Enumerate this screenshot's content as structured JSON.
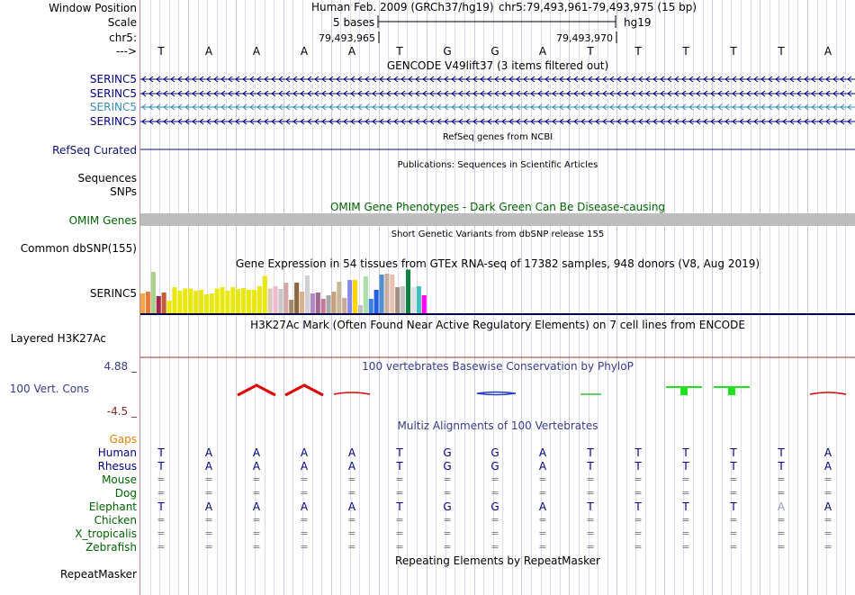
{
  "left_labels": {
    "window_position": "Window Position",
    "scale": "Scale",
    "chrom": "chr5:",
    "arrow": "--->",
    "serinc5_1": "SERINC5",
    "serinc5_2": "SERINC5",
    "serinc5_3": "SERINC5",
    "serinc5_4": "SERINC5",
    "refseq": "RefSeq Curated",
    "sequences": "Sequences",
    "snps": "SNPs",
    "omim": "OMIM Genes",
    "dbsnp": "Common dbSNP(155)",
    "gtex_gene": "SERINC5",
    "h3k27ac": "Layered H3K27Ac",
    "phylop_max": "4.88 _",
    "cons": "100 Vert. Cons",
    "phylop_min": "-4.5 _",
    "gaps": "Gaps",
    "human": "Human",
    "rhesus": "Rhesus",
    "mouse": "Mouse",
    "dog": "Dog",
    "elephant": "Elephant",
    "chicken": "Chicken",
    "xtrop": "X_tropicalis",
    "zebrafish": "Zebrafish",
    "repeatmasker": "RepeatMasker"
  },
  "header": {
    "assembly": "Human Feb. 2009 (GRCh37/hg19)",
    "position": "chr5:79,493,961-79,493,975 (15 bp)",
    "scale_text": "5 bases",
    "db": "hg19",
    "coord_left": "79,493,965",
    "coord_right": "79,493,970"
  },
  "bases": [
    "T",
    "A",
    "A",
    "A",
    "A",
    "T",
    "G",
    "G",
    "A",
    "T",
    "T",
    "T",
    "T",
    "T",
    "A"
  ],
  "track_titles": {
    "gencode": "GENCODE V49lift37 (3 items filtered out)",
    "refseq": "RefSeq genes from NCBI",
    "publications": "Publications: Sequences in Scientific Articles",
    "omim": "OMIM Gene Phenotypes - Dark Green Can Be Disease-causing",
    "dbsnp": "Short Genetic Variants from dbSNP release 155",
    "gtex": "Gene Expression in 54 tissues from GTEx RNA-seq of 17382 samples, 948 donors (V8, Aug 2019)",
    "h3k27ac": "H3K27Ac Mark (Often Found Near Active Regulatory Elements) on 7 cell lines from ENCODE",
    "phylop": "100 vertebrates Basewise Conservation by PhyloP",
    "multiz": "Multiz Alignments of 100 Vertebrates",
    "repeatmasker": "Repeating Elements by RepeatMasker"
  },
  "alignments": {
    "human": [
      "T",
      "A",
      "A",
      "A",
      "A",
      "T",
      "G",
      "G",
      "A",
      "T",
      "T",
      "T",
      "T",
      "T",
      "A"
    ],
    "rhesus": [
      "T",
      "A",
      "A",
      "A",
      "A",
      "T",
      "G",
      "G",
      "A",
      "T",
      "T",
      "T",
      "T",
      "T",
      "A"
    ],
    "mouse": [
      "=",
      "=",
      "=",
      "=",
      "=",
      "=",
      "=",
      "=",
      "=",
      "=",
      "=",
      "=",
      "=",
      "=",
      "="
    ],
    "dog": [
      "=",
      "=",
      "=",
      "=",
      "=",
      "=",
      "=",
      "=",
      "=",
      "=",
      "=",
      "=",
      "=",
      "=",
      "="
    ],
    "elephant": [
      "T",
      "A",
      "A",
      "A",
      "A",
      "T",
      "G",
      "G",
      "A",
      "T",
      "T",
      "T",
      "T",
      "A",
      "A"
    ],
    "chicken": [
      "=",
      "=",
      "=",
      "=",
      "=",
      "=",
      "=",
      "=",
      "=",
      "=",
      "=",
      "=",
      "=",
      "=",
      "="
    ],
    "xtrop": [
      "=",
      "=",
      "=",
      "=",
      "=",
      "=",
      "=",
      "=",
      "=",
      "=",
      "=",
      "=",
      "=",
      "=",
      "="
    ],
    "zebrafish": [
      "=",
      "=",
      "=",
      "=",
      "=",
      "=",
      "=",
      "=",
      "=",
      "=",
      "=",
      "=",
      "=",
      "=",
      "="
    ]
  },
  "gtex_colors": [
    "#f5a34d",
    "#f07b35",
    "#a8d28a",
    "#a0284a",
    "#c85a3a",
    "#e8e810",
    "#e8e810",
    "#e8e810",
    "#e8e810",
    "#e8e810",
    "#e8e810",
    "#e8e810",
    "#e8e810",
    "#e8e810",
    "#e8e810",
    "#e8e810",
    "#e8e810",
    "#e8e810",
    "#e8e810",
    "#e8e810",
    "#e8e810",
    "#e8e810",
    "#e8e810",
    "#e8e810",
    "#d7c8c0",
    "#f0b8c8",
    "#c8c8c8",
    "#d7a8a8",
    "#a08868",
    "#8c6840",
    "#d7b090",
    "#d0d0d0",
    "#b088c8",
    "#a06890",
    "#c87898",
    "#a8a8a8",
    "#c8a080",
    "#c8b898",
    "#c8a898",
    "#8888e8",
    "#ffd700",
    "#c0c0c0",
    "#a8e0a8",
    "#3c7fdf",
    "#2060df",
    "#5090d0",
    "#c8b0a0",
    "#e8c0b0",
    "#a09080",
    "#c0c0c0",
    "#108040",
    "#e0e0e0",
    "#40c0c0",
    "#ff00ff"
  ],
  "gtex_values": [
    0.44,
    0.48,
    0.92,
    0.38,
    0.46,
    0.28,
    0.58,
    0.5,
    0.55,
    0.55,
    0.5,
    0.52,
    0.42,
    0.44,
    0.55,
    0.58,
    0.5,
    0.58,
    0.54,
    0.56,
    0.52,
    0.52,
    0.6,
    0.83,
    0.55,
    0.6,
    0.54,
    0.68,
    0.3,
    0.68,
    0.48,
    0.84,
    0.44,
    0.46,
    0.32,
    0.4,
    0.48,
    0.7,
    0.34,
    0.74,
    0.74,
    0.18,
    0.82,
    0.32,
    0.52,
    0.86,
    0.88,
    0.86,
    0.58,
    0.6,
    0.97,
    0.58,
    0.6,
    0.4
  ]
}
